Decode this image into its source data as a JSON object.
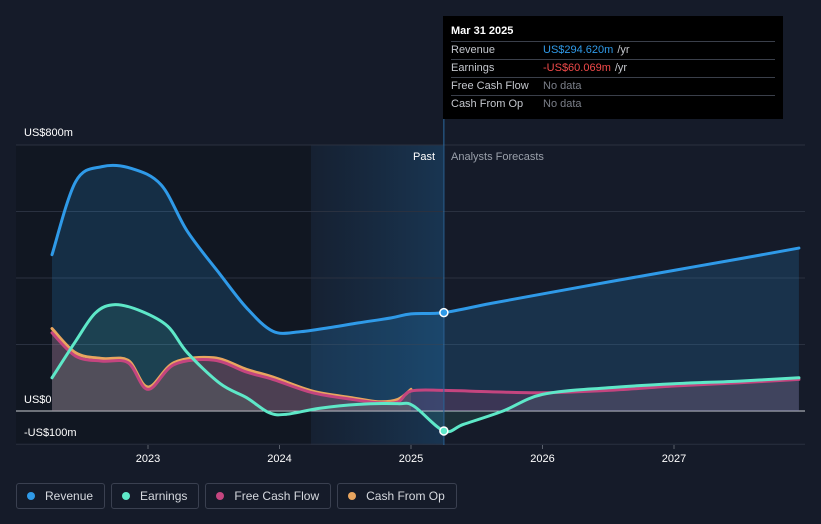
{
  "chart_data": {
    "type": "line",
    "y_axis": {
      "top_label": "US$800m",
      "zero_label": "US$0",
      "bottom_label": "-US$100m",
      "ylim": [
        -100,
        800
      ]
    },
    "x_axis": {
      "ticks": [
        "2023",
        "2024",
        "2025",
        "2026",
        "2027"
      ]
    },
    "section_labels": {
      "past": "Past",
      "forecast": "Analysts Forecasts"
    },
    "series": [
      {
        "name": "Revenue",
        "color": "#2f9ae8",
        "points": [
          [
            2022.27,
            470
          ],
          [
            2022.45,
            690
          ],
          [
            2022.65,
            735
          ],
          [
            2022.87,
            730
          ],
          [
            2023.1,
            680
          ],
          [
            2023.3,
            540
          ],
          [
            2023.55,
            410
          ],
          [
            2023.75,
            310
          ],
          [
            2023.95,
            240
          ],
          [
            2024.15,
            238
          ],
          [
            2024.4,
            252
          ],
          [
            2024.6,
            265
          ],
          [
            2024.85,
            280
          ],
          [
            2025.0,
            292
          ],
          [
            2025.25,
            296
          ],
          [
            2025.6,
            323
          ],
          [
            2026.0,
            352
          ],
          [
            2026.5,
            388
          ],
          [
            2027.0,
            423
          ],
          [
            2027.5,
            458
          ],
          [
            2027.95,
            490
          ]
        ]
      },
      {
        "name": "Earnings",
        "color": "#5ee8c8",
        "points": [
          [
            2022.27,
            100
          ],
          [
            2022.45,
            210
          ],
          [
            2022.6,
            295
          ],
          [
            2022.75,
            320
          ],
          [
            2022.95,
            300
          ],
          [
            2023.15,
            255
          ],
          [
            2023.3,
            175
          ],
          [
            2023.55,
            82
          ],
          [
            2023.75,
            40
          ],
          [
            2023.92,
            -5
          ],
          [
            2024.05,
            -10
          ],
          [
            2024.3,
            8
          ],
          [
            2024.6,
            20
          ],
          [
            2024.9,
            22
          ],
          [
            2025.02,
            15
          ],
          [
            2025.25,
            -60
          ],
          [
            2025.4,
            -40
          ],
          [
            2025.7,
            0
          ],
          [
            2026.0,
            50
          ],
          [
            2026.5,
            70
          ],
          [
            2027.0,
            82
          ],
          [
            2027.5,
            90
          ],
          [
            2027.95,
            100
          ]
        ]
      },
      {
        "name": "Free Cash Flow",
        "color": "#c4457f",
        "points": [
          [
            2022.27,
            235
          ],
          [
            2022.45,
            165
          ],
          [
            2022.65,
            150
          ],
          [
            2022.85,
            145
          ],
          [
            2023.0,
            65
          ],
          [
            2023.2,
            140
          ],
          [
            2023.5,
            153
          ],
          [
            2023.75,
            117
          ],
          [
            2023.95,
            95
          ],
          [
            2024.25,
            55
          ],
          [
            2024.55,
            35
          ],
          [
            2024.75,
            25
          ],
          [
            2024.9,
            27
          ],
          [
            2025.0,
            60
          ],
          [
            2025.25,
            62
          ],
          [
            2025.6,
            58
          ],
          [
            2026.0,
            55
          ],
          [
            2026.5,
            62
          ],
          [
            2027.0,
            75
          ],
          [
            2027.5,
            85
          ],
          [
            2027.95,
            95
          ]
        ]
      },
      {
        "name": "Cash From Op",
        "color": "#e8a55f",
        "points": [
          [
            2022.27,
            248
          ],
          [
            2022.45,
            175
          ],
          [
            2022.65,
            158
          ],
          [
            2022.85,
            152
          ],
          [
            2023.0,
            72
          ],
          [
            2023.2,
            146
          ],
          [
            2023.5,
            160
          ],
          [
            2023.75,
            125
          ],
          [
            2023.95,
            102
          ],
          [
            2024.25,
            60
          ],
          [
            2024.55,
            40
          ],
          [
            2024.75,
            28
          ],
          [
            2024.9,
            35
          ],
          [
            2025.0,
            65
          ]
        ]
      }
    ],
    "divider_x": 2025.25,
    "marker_x": 2025.25
  },
  "tooltip": {
    "date": "Mar 31 2025",
    "rows": [
      {
        "label": "Revenue",
        "value": "US$294.620m",
        "unit": "/yr",
        "color": "#2f9ae8"
      },
      {
        "label": "Earnings",
        "value": "-US$60.069m",
        "unit": "/yr",
        "color": "#f24a4a"
      },
      {
        "label": "Free Cash Flow",
        "value": "No data",
        "unit": "",
        "color": "#7b7f89"
      },
      {
        "label": "Cash From Op",
        "value": "No data",
        "unit": "",
        "color": "#7b7f89"
      }
    ]
  },
  "legend": [
    {
      "label": "Revenue",
      "color": "#2f9ae8"
    },
    {
      "label": "Earnings",
      "color": "#5ee8c8"
    },
    {
      "label": "Free Cash Flow",
      "color": "#c4457f"
    },
    {
      "label": "Cash From Op",
      "color": "#e8a55f"
    }
  ]
}
